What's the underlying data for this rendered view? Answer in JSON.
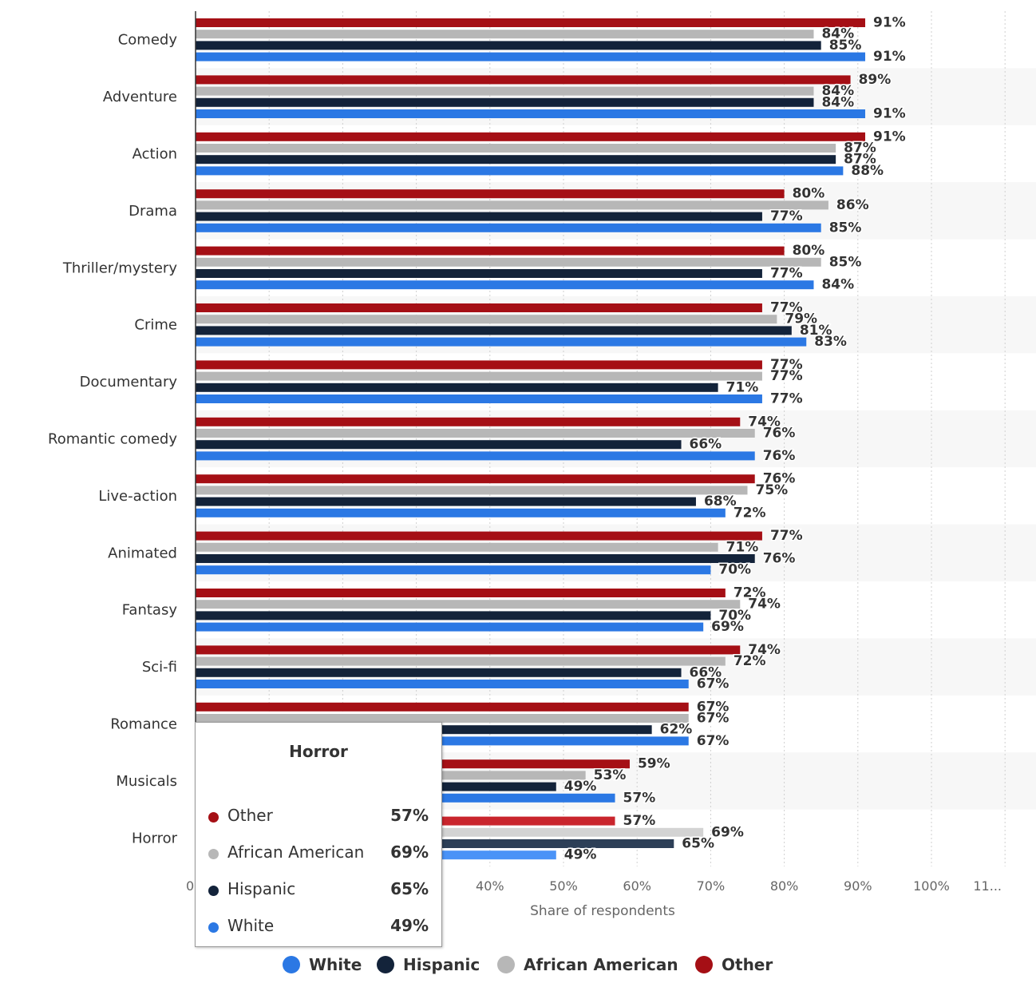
{
  "chart_data": {
    "type": "bar",
    "orientation": "horizontal",
    "title": "",
    "xlabel": "Share of respondents",
    "ylabel": "",
    "xlim": [
      0,
      110
    ],
    "x_ticks": [
      "0",
      "40%",
      "50%",
      "60%",
      "70%",
      "80%",
      "90%",
      "100%",
      "11..."
    ],
    "grid": true,
    "categories": [
      "Comedy",
      "Adventure",
      "Action",
      "Drama",
      "Thriller/mystery",
      "Crime",
      "Documentary",
      "Romantic comedy",
      "Live-action",
      "Animated",
      "Fantasy",
      "Sci-fi",
      "Romance",
      "Musicals",
      "Horror"
    ],
    "series": [
      {
        "name": "Other",
        "color": "#a50f15",
        "values": [
          91,
          89,
          91,
          80,
          80,
          77,
          77,
          74,
          76,
          77,
          72,
          74,
          67,
          59,
          57
        ]
      },
      {
        "name": "African American",
        "color": "#b7b7b7",
        "values": [
          84,
          84,
          87,
          86,
          85,
          79,
          77,
          76,
          75,
          71,
          74,
          72,
          67,
          53,
          69
        ]
      },
      {
        "name": "Hispanic",
        "color": "#13233a",
        "values": [
          85,
          84,
          87,
          77,
          77,
          81,
          71,
          66,
          68,
          76,
          70,
          66,
          62,
          49,
          65
        ]
      },
      {
        "name": "White",
        "color": "#2b78e4",
        "values": [
          91,
          91,
          88,
          85,
          84,
          83,
          77,
          76,
          72,
          70,
          69,
          67,
          67,
          57,
          49
        ]
      }
    ],
    "data_labels": [
      [
        "91%",
        "84%",
        "85%",
        "91%"
      ],
      [
        "89%",
        "84%",
        "84%",
        "91%"
      ],
      [
        "91%",
        "87%",
        "87%",
        "88%"
      ],
      [
        "80%",
        "86%",
        "77%",
        "85%"
      ],
      [
        "80%",
        "85%",
        "77%",
        "84%"
      ],
      [
        "77%",
        "79%",
        "81%",
        "83%"
      ],
      [
        "77%",
        "77%",
        "71%",
        "77%"
      ],
      [
        "74%",
        "76%",
        "66%",
        "76%"
      ],
      [
        "76%",
        "75%",
        "68%",
        "72%"
      ],
      [
        "77%",
        "71%",
        "76%",
        "70%"
      ],
      [
        "72%",
        "74%",
        "70%",
        "69%"
      ],
      [
        "74%",
        "72%",
        "66%",
        "67%"
      ],
      [
        "67%",
        "67%",
        "62%",
        "67%"
      ],
      [
        "59%",
        "53%",
        "49%",
        "57%"
      ],
      [
        "57%",
        "69%",
        "65%",
        "49%"
      ]
    ],
    "legend": {
      "placement": "bottom",
      "items": [
        {
          "name": "White",
          "color": "#2b78e4"
        },
        {
          "name": "Hispanic",
          "color": "#13233a"
        },
        {
          "name": "African American",
          "color": "#b7b7b7"
        },
        {
          "name": "Other",
          "color": "#a50f15"
        }
      ]
    },
    "highlighted_category": "Horror"
  },
  "tooltip": {
    "title": "Horror",
    "rows": [
      {
        "name": "Other",
        "value": "57%",
        "color": "#a50f15"
      },
      {
        "name": "African American",
        "value": "69%",
        "color": "#b7b7b7"
      },
      {
        "name": "Hispanic",
        "value": "65%",
        "color": "#13233a"
      },
      {
        "name": "White",
        "value": "49%",
        "color": "#2b78e4"
      }
    ]
  }
}
